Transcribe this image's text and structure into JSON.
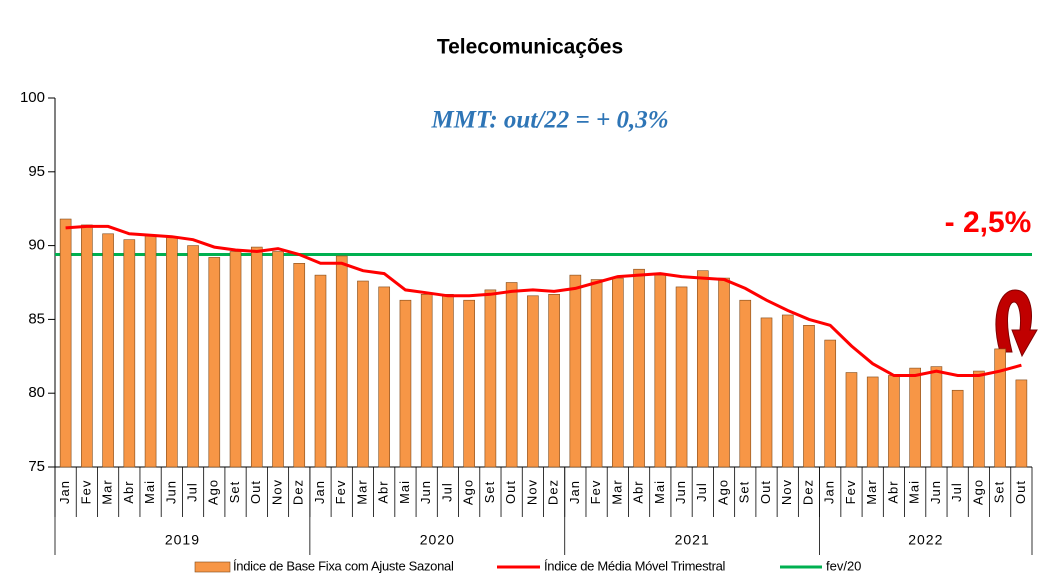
{
  "chart_data": {
    "type": "bar_line",
    "title": "Telecomunicações",
    "annotations": [
      "MMT: out/22 =  + 0,3%",
      "- 2,5%"
    ],
    "groups": [
      {
        "label": "2019",
        "categories": [
          "Jan",
          "Fev",
          "Mar",
          "Abr",
          "Mai",
          "Jun",
          "Jul",
          "Ago",
          "Set",
          "Out",
          "Nov",
          "Dez"
        ]
      },
      {
        "label": "2020",
        "categories": [
          "Jan",
          "Fev",
          "Mar",
          "Abr",
          "Mai",
          "Jun",
          "Jul",
          "Ago",
          "Set",
          "Out",
          "Nov",
          "Dez"
        ]
      },
      {
        "label": "2021",
        "categories": [
          "Jan",
          "Fev",
          "Mar",
          "Abr",
          "Mai",
          "Jun",
          "Jul",
          "Ago",
          "Set",
          "Out",
          "Nov",
          "Dez"
        ]
      },
      {
        "label": "2022",
        "categories": [
          "Jan",
          "Fev",
          "Mar",
          "Abr",
          "Mai",
          "Jun",
          "Jul",
          "Ago",
          "Set",
          "Out"
        ]
      }
    ],
    "series": [
      {
        "name": "Índice de Base Fixa com Ajuste Sazonal",
        "type": "bar",
        "color": "#f79646",
        "values": [
          91.8,
          91.4,
          90.8,
          90.4,
          90.7,
          90.6,
          90.0,
          89.2,
          89.6,
          89.9,
          89.6,
          88.8,
          88.0,
          89.3,
          87.6,
          87.2,
          86.3,
          86.7,
          86.7,
          86.3,
          87.0,
          87.5,
          86.6,
          86.7,
          88.0,
          87.7,
          87.8,
          88.4,
          88.0,
          87.2,
          88.3,
          87.8,
          86.3,
          85.1,
          85.3,
          84.6,
          83.6,
          81.4,
          81.1,
          81.2,
          81.7,
          81.8,
          80.2,
          81.5,
          83.0,
          80.9
        ]
      },
      {
        "name": "Índice de Média Móvel Trimestral",
        "type": "line",
        "color": "#ff0000",
        "values": [
          91.2,
          91.3,
          91.3,
          90.8,
          90.7,
          90.6,
          90.4,
          89.9,
          89.7,
          89.6,
          89.8,
          89.4,
          88.8,
          88.8,
          88.3,
          88.1,
          87.0,
          86.8,
          86.6,
          86.6,
          86.7,
          86.9,
          87.0,
          86.9,
          87.1,
          87.5,
          87.9,
          88.0,
          88.1,
          87.9,
          87.8,
          87.7,
          87.1,
          86.3,
          85.6,
          85.0,
          84.6,
          83.2,
          82.0,
          81.2,
          81.2,
          81.5,
          81.2,
          81.2,
          81.5,
          81.9
        ]
      }
    ],
    "reference_lines": [
      {
        "name": "fev/20",
        "value": 89.4,
        "color": "#00b050"
      }
    ],
    "ylim": [
      75,
      100
    ],
    "yticks": [
      75,
      80,
      85,
      90,
      95,
      100
    ]
  }
}
